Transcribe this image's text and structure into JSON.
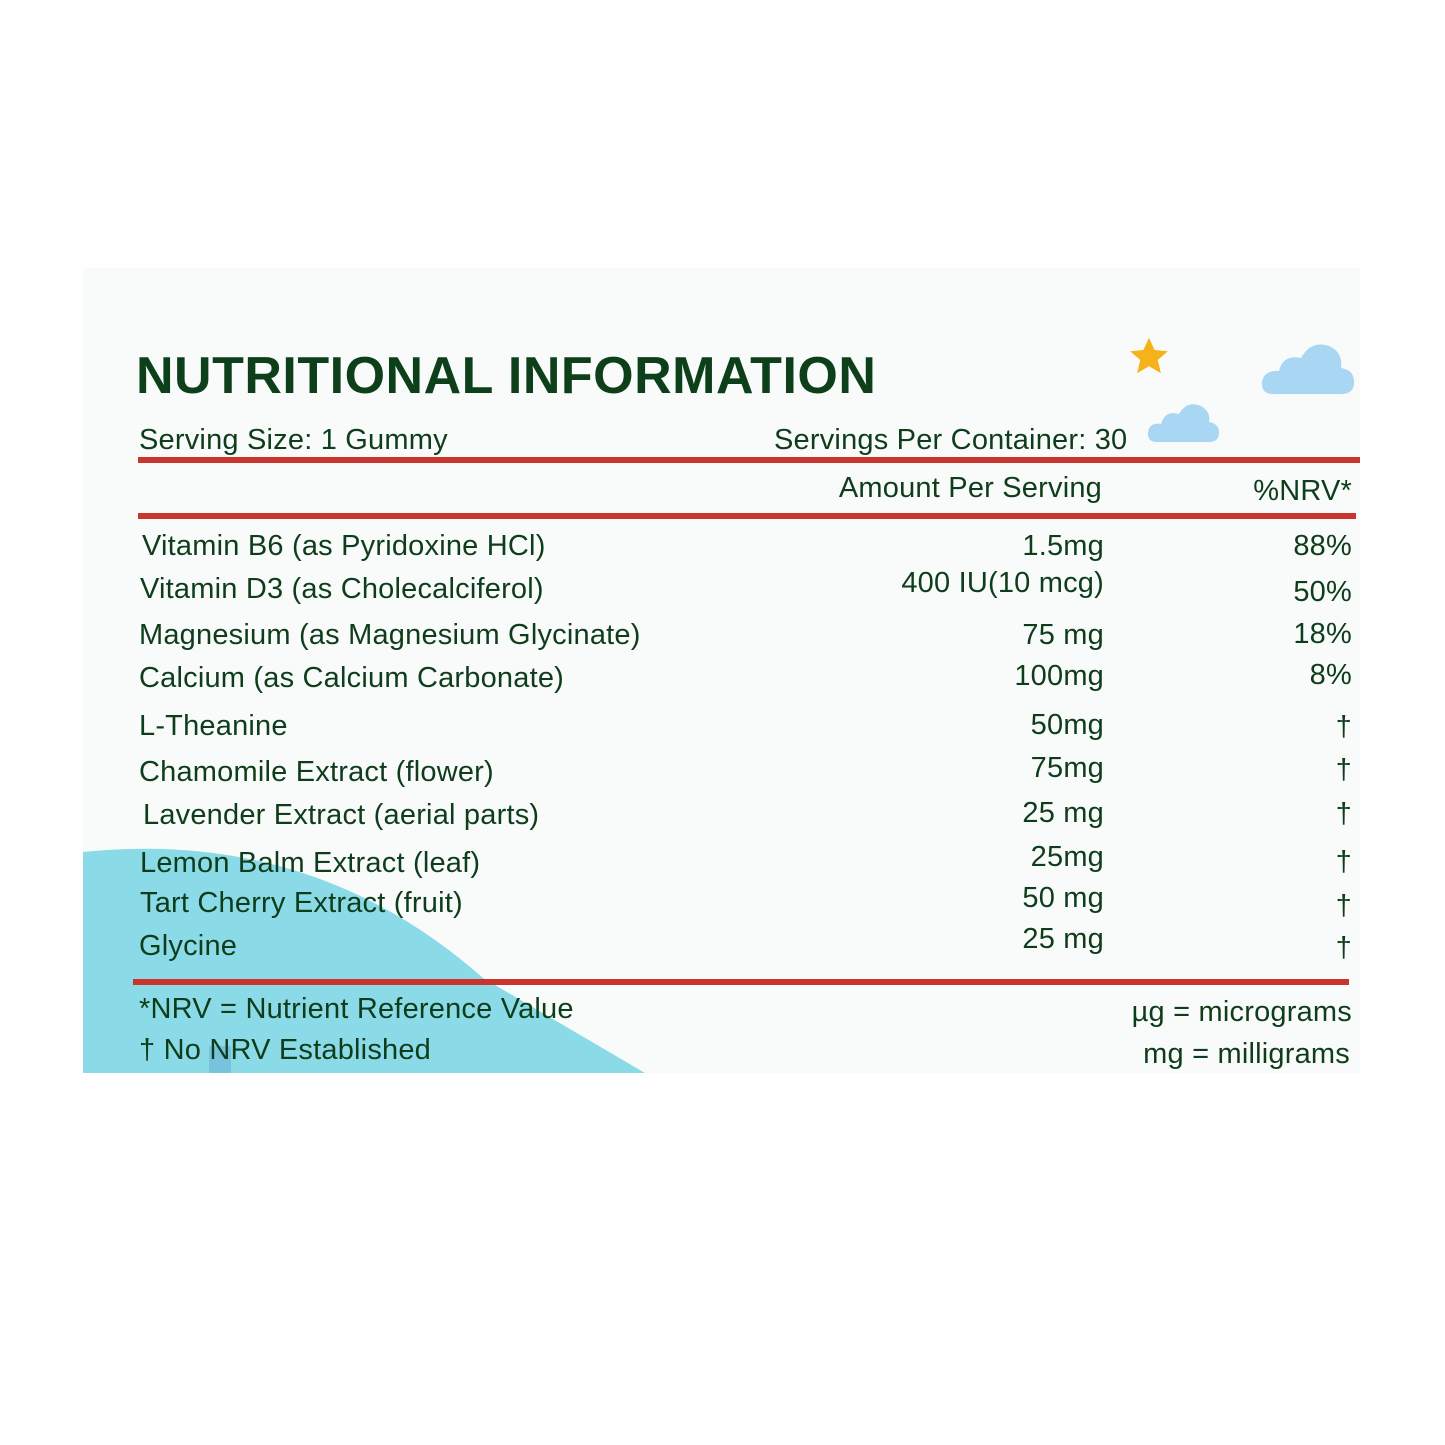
{
  "title": "NUTRITIONAL INFORMATION",
  "serving_size": "Serving Size: 1 Gummy",
  "servings_per_container": "Servings Per Container: 30",
  "columns": {
    "amount": "Amount Per Serving",
    "nrv": "%NRV*"
  },
  "rows": [
    {
      "name": "Vitamin B6 (as Pyridoxine HCl)",
      "amount": "1.5mg",
      "nrv": "88%"
    },
    {
      "name": "Vitamin D3 (as Cholecalciferol)",
      "amount": "400 IU(10 mcg)",
      "nrv": "50%"
    },
    {
      "name": "Magnesium (as Magnesium Glycinate)",
      "amount": "75 mg",
      "nrv": "18%"
    },
    {
      "name": "Calcium (as Calcium Carbonate)",
      "amount": "100mg",
      "nrv": "8%"
    },
    {
      "name": "L-Theanine",
      "amount": "50mg",
      "nrv": "†"
    },
    {
      "name": "Chamomile Extract (flower)",
      "amount": "75mg",
      "nrv": "†"
    },
    {
      "name": "Lavender Extract (aerial parts)",
      "amount": "25 mg",
      "nrv": "†"
    },
    {
      "name": "Lemon Balm Extract (leaf)",
      "amount": "25mg",
      "nrv": "†"
    },
    {
      "name": "Tart Cherry Extract (fruit)",
      "amount": "50 mg",
      "nrv": "†"
    },
    {
      "name": "Glycine",
      "amount": "25 mg",
      "nrv": "†"
    }
  ],
  "footnotes": {
    "nrv": "*NRV = Nutrient Reference Value",
    "dagger": "† No NRV Established",
    "ug": "µg = micrograms",
    "mg": "mg = milligrams"
  },
  "colors": {
    "text": "#0f3d1c",
    "rule": "#c9342c",
    "cloud": "#a9d6f2",
    "star": "#f6b21a",
    "wave": "#8adbe7",
    "background": "#f8fbfa"
  },
  "icons": [
    "star-icon",
    "cloud-icon"
  ]
}
